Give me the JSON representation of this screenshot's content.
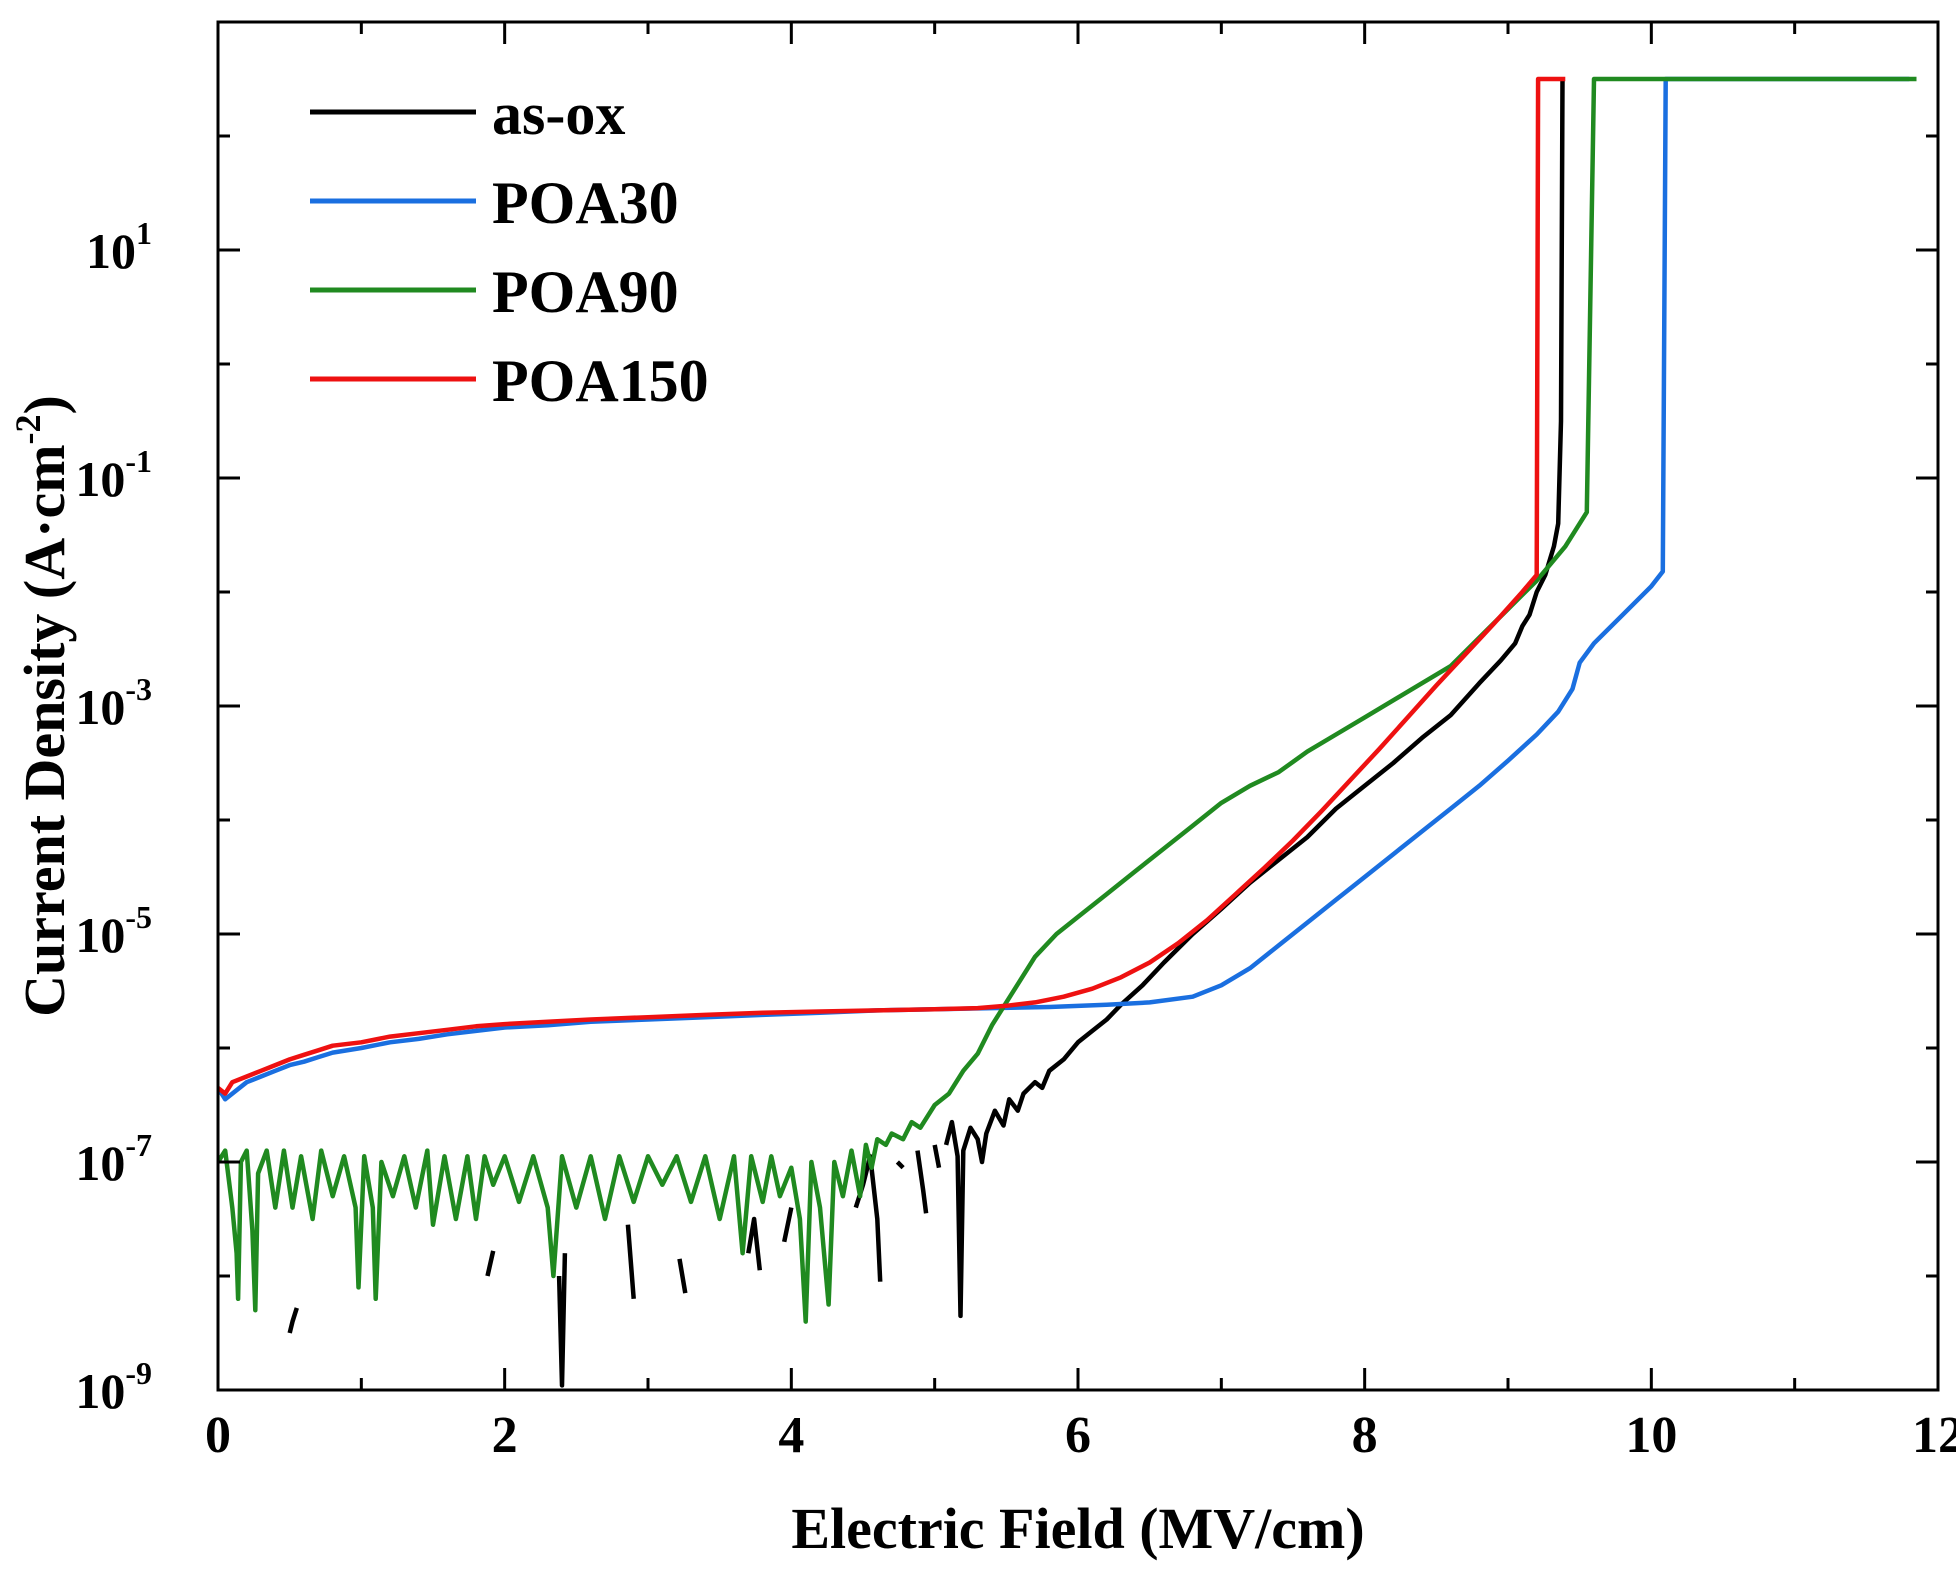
{
  "chart_data": {
    "type": "line",
    "xlabel": "Electric Field (MV/cm)",
    "ylabel_main": "Current Density (A·cm",
    "ylabel_sup": "-2",
    "ylabel_close": ")",
    "xlim": [
      0,
      12
    ],
    "ylim_log10": [
      -9,
      3
    ],
    "y_scale": "log",
    "grid": false,
    "legend_position": "top-left",
    "x_ticks": [
      {
        "value": 0,
        "label": "0"
      },
      {
        "value": 2,
        "label": "2"
      },
      {
        "value": 4,
        "label": "4"
      },
      {
        "value": 6,
        "label": "6"
      },
      {
        "value": 8,
        "label": "8"
      },
      {
        "value": 10,
        "label": "10"
      },
      {
        "value": 12,
        "label": "12"
      }
    ],
    "y_ticks": [
      {
        "exp": -9,
        "base": "10",
        "sup": "-9"
      },
      {
        "exp": -7,
        "base": "10",
        "sup": "-7"
      },
      {
        "exp": -5,
        "base": "10",
        "sup": "-5"
      },
      {
        "exp": -3,
        "base": "10",
        "sup": "-3"
      },
      {
        "exp": -1,
        "base": "10",
        "sup": "-1"
      },
      {
        "exp": 1,
        "base": "10",
        "sup": "1"
      }
    ],
    "series": [
      {
        "name": "as-ox",
        "color": "#000000",
        "points": [
          [
            0.55,
            -8.28
          ],
          [
            0.52,
            -8.4
          ],
          [
            0.5,
            -8.5
          ],
          null,
          [
            1.88,
            -8.0
          ],
          [
            1.92,
            -7.78
          ],
          null,
          [
            2.38,
            -8.0
          ],
          [
            2.4,
            -8.96
          ],
          [
            2.42,
            -7.8
          ],
          null,
          [
            2.86,
            -7.55
          ],
          [
            2.9,
            -8.2
          ],
          null,
          [
            3.22,
            -7.85
          ],
          [
            3.26,
            -8.15
          ],
          null,
          [
            3.7,
            -7.8
          ],
          [
            3.74,
            -7.5
          ],
          [
            3.78,
            -7.95
          ],
          null,
          [
            3.95,
            -7.7
          ],
          [
            4.0,
            -7.4
          ],
          null,
          [
            4.45,
            -7.4
          ],
          [
            4.5,
            -7.2
          ],
          [
            4.55,
            -6.95
          ],
          [
            4.6,
            -7.5
          ],
          [
            4.62,
            -8.05
          ],
          null,
          [
            4.74,
            -7.0
          ],
          [
            4.78,
            -7.05
          ],
          null,
          [
            4.88,
            -6.9
          ],
          [
            4.92,
            -7.25
          ],
          [
            4.94,
            -7.45
          ],
          null,
          [
            5.0,
            -6.85
          ],
          [
            5.03,
            -7.05
          ],
          null,
          [
            5.08,
            -6.85
          ],
          [
            5.12,
            -6.65
          ],
          [
            5.16,
            -6.95
          ],
          [
            5.18,
            -8.35
          ],
          [
            5.2,
            -6.9
          ],
          [
            5.25,
            -6.7
          ],
          [
            5.3,
            -6.8
          ],
          [
            5.33,
            -7.0
          ],
          [
            5.36,
            -6.75
          ],
          [
            5.42,
            -6.55
          ],
          [
            5.48,
            -6.68
          ],
          [
            5.52,
            -6.45
          ],
          [
            5.58,
            -6.55
          ],
          [
            5.62,
            -6.4
          ],
          [
            5.7,
            -6.3
          ],
          [
            5.75,
            -6.35
          ],
          [
            5.8,
            -6.2
          ],
          [
            5.9,
            -6.1
          ],
          [
            6.0,
            -5.95
          ],
          [
            6.1,
            -5.85
          ],
          [
            6.2,
            -5.75
          ],
          [
            6.3,
            -5.62
          ],
          [
            6.45,
            -5.45
          ],
          [
            6.6,
            -5.25
          ],
          [
            6.8,
            -5.0
          ],
          [
            7.0,
            -4.78
          ],
          [
            7.2,
            -4.55
          ],
          [
            7.4,
            -4.35
          ],
          [
            7.6,
            -4.15
          ],
          [
            7.8,
            -3.9
          ],
          [
            8.0,
            -3.7
          ],
          [
            8.2,
            -3.5
          ],
          [
            8.4,
            -3.28
          ],
          [
            8.6,
            -3.08
          ],
          [
            8.8,
            -2.8
          ],
          [
            8.95,
            -2.6
          ],
          [
            9.05,
            -2.45
          ],
          [
            9.1,
            -2.3
          ],
          [
            9.15,
            -2.2
          ],
          [
            9.2,
            -2.0
          ],
          [
            9.26,
            -1.85
          ],
          [
            9.32,
            -1.6
          ],
          [
            9.35,
            -1.4
          ],
          [
            9.37,
            -0.5
          ],
          [
            9.38,
            2.5
          ]
        ]
      },
      {
        "name": "POA30",
        "color": "#1a6fe0",
        "points": [
          [
            0.0,
            -6.35
          ],
          [
            0.05,
            -6.45
          ],
          [
            0.1,
            -6.4
          ],
          [
            0.2,
            -6.3
          ],
          [
            0.3,
            -6.25
          ],
          [
            0.4,
            -6.2
          ],
          [
            0.5,
            -6.15
          ],
          [
            0.6,
            -6.12
          ],
          [
            0.7,
            -6.08
          ],
          [
            0.8,
            -6.04
          ],
          [
            1.0,
            -6.0
          ],
          [
            1.2,
            -5.95
          ],
          [
            1.4,
            -5.92
          ],
          [
            1.6,
            -5.88
          ],
          [
            1.8,
            -5.85
          ],
          [
            2.0,
            -5.82
          ],
          [
            2.3,
            -5.8
          ],
          [
            2.6,
            -5.77
          ],
          [
            3.0,
            -5.75
          ],
          [
            3.4,
            -5.73
          ],
          [
            3.8,
            -5.71
          ],
          [
            4.2,
            -5.69
          ],
          [
            4.6,
            -5.67
          ],
          [
            5.0,
            -5.66
          ],
          [
            5.4,
            -5.65
          ],
          [
            5.8,
            -5.64
          ],
          [
            6.2,
            -5.62
          ],
          [
            6.5,
            -5.6
          ],
          [
            6.8,
            -5.55
          ],
          [
            7.0,
            -5.45
          ],
          [
            7.2,
            -5.3
          ],
          [
            7.4,
            -5.1
          ],
          [
            7.6,
            -4.9
          ],
          [
            7.8,
            -4.7
          ],
          [
            8.0,
            -4.5
          ],
          [
            8.2,
            -4.3
          ],
          [
            8.4,
            -4.1
          ],
          [
            8.6,
            -3.9
          ],
          [
            8.8,
            -3.7
          ],
          [
            9.0,
            -3.48
          ],
          [
            9.2,
            -3.25
          ],
          [
            9.35,
            -3.05
          ],
          [
            9.45,
            -2.85
          ],
          [
            9.5,
            -2.62
          ],
          [
            9.6,
            -2.45
          ],
          [
            9.8,
            -2.2
          ],
          [
            10.0,
            -1.95
          ],
          [
            10.08,
            -1.82
          ],
          [
            10.1,
            2.5
          ],
          [
            11.8,
            2.5
          ]
        ]
      },
      {
        "name": "POA90",
        "color": "#208a20",
        "points": [
          [
            0.0,
            -7.0
          ],
          [
            0.05,
            -6.9
          ],
          [
            0.1,
            -7.4
          ],
          [
            0.13,
            -7.8
          ],
          [
            0.14,
            -8.2
          ],
          [
            0.16,
            -7.0
          ],
          [
            0.2,
            -6.9
          ],
          [
            0.24,
            -7.6
          ],
          [
            0.26,
            -8.3
          ],
          [
            0.28,
            -7.1
          ],
          [
            0.34,
            -6.9
          ],
          [
            0.4,
            -7.4
          ],
          [
            0.46,
            -6.9
          ],
          [
            0.52,
            -7.4
          ],
          [
            0.58,
            -6.95
          ],
          [
            0.66,
            -7.5
          ],
          [
            0.72,
            -6.9
          ],
          [
            0.8,
            -7.3
          ],
          [
            0.88,
            -6.95
          ],
          [
            0.96,
            -7.4
          ],
          [
            0.98,
            -8.1
          ],
          [
            1.02,
            -6.95
          ],
          [
            1.08,
            -7.4
          ],
          [
            1.1,
            -8.2
          ],
          [
            1.14,
            -7.0
          ],
          [
            1.22,
            -7.3
          ],
          [
            1.3,
            -6.95
          ],
          [
            1.38,
            -7.4
          ],
          [
            1.46,
            -6.9
          ],
          [
            1.5,
            -7.55
          ],
          [
            1.58,
            -6.95
          ],
          [
            1.66,
            -7.5
          ],
          [
            1.74,
            -6.95
          ],
          [
            1.8,
            -7.5
          ],
          [
            1.86,
            -6.95
          ],
          [
            1.92,
            -7.2
          ],
          [
            2.0,
            -6.95
          ],
          [
            2.1,
            -7.35
          ],
          [
            2.2,
            -6.95
          ],
          [
            2.3,
            -7.4
          ],
          [
            2.34,
            -8.0
          ],
          [
            2.4,
            -6.95
          ],
          [
            2.5,
            -7.4
          ],
          [
            2.6,
            -6.95
          ],
          [
            2.7,
            -7.5
          ],
          [
            2.8,
            -6.95
          ],
          [
            2.9,
            -7.35
          ],
          [
            3.0,
            -6.95
          ],
          [
            3.1,
            -7.2
          ],
          [
            3.2,
            -6.95
          ],
          [
            3.3,
            -7.35
          ],
          [
            3.4,
            -6.95
          ],
          [
            3.5,
            -7.5
          ],
          [
            3.6,
            -6.95
          ],
          [
            3.66,
            -7.8
          ],
          [
            3.72,
            -6.95
          ],
          [
            3.8,
            -7.35
          ],
          [
            3.86,
            -6.95
          ],
          [
            3.92,
            -7.3
          ],
          [
            4.0,
            -7.05
          ],
          [
            4.06,
            -7.5
          ],
          [
            4.1,
            -8.4
          ],
          [
            4.14,
            -7.0
          ],
          [
            4.2,
            -7.4
          ],
          [
            4.26,
            -8.25
          ],
          [
            4.3,
            -7.0
          ],
          [
            4.36,
            -7.3
          ],
          [
            4.42,
            -6.9
          ],
          [
            4.48,
            -7.3
          ],
          [
            4.52,
            -6.85
          ],
          [
            4.56,
            -7.05
          ],
          [
            4.6,
            -6.8
          ],
          [
            4.66,
            -6.85
          ],
          [
            4.7,
            -6.75
          ],
          [
            4.78,
            -6.8
          ],
          [
            4.84,
            -6.65
          ],
          [
            4.9,
            -6.7
          ],
          [
            5.0,
            -6.5
          ],
          [
            5.1,
            -6.4
          ],
          [
            5.2,
            -6.2
          ],
          [
            5.3,
            -6.05
          ],
          [
            5.4,
            -5.8
          ],
          [
            5.5,
            -5.6
          ],
          [
            5.6,
            -5.4
          ],
          [
            5.7,
            -5.2
          ],
          [
            5.85,
            -5.0
          ],
          [
            6.0,
            -4.85
          ],
          [
            6.2,
            -4.65
          ],
          [
            6.4,
            -4.45
          ],
          [
            6.6,
            -4.25
          ],
          [
            6.8,
            -4.05
          ],
          [
            7.0,
            -3.85
          ],
          [
            7.2,
            -3.7
          ],
          [
            7.4,
            -3.58
          ],
          [
            7.6,
            -3.4
          ],
          [
            7.8,
            -3.25
          ],
          [
            8.0,
            -3.1
          ],
          [
            8.2,
            -2.95
          ],
          [
            8.4,
            -2.8
          ],
          [
            8.6,
            -2.65
          ],
          [
            8.8,
            -2.4
          ],
          [
            9.0,
            -2.15
          ],
          [
            9.2,
            -1.9
          ],
          [
            9.4,
            -1.6
          ],
          [
            9.55,
            -1.3
          ],
          [
            9.6,
            2.5
          ],
          [
            11.85,
            2.5
          ]
        ]
      },
      {
        "name": "POA150",
        "color": "#ee1111",
        "points": [
          [
            0.0,
            -6.35
          ],
          [
            0.05,
            -6.4
          ],
          [
            0.1,
            -6.3
          ],
          [
            0.2,
            -6.25
          ],
          [
            0.3,
            -6.2
          ],
          [
            0.4,
            -6.15
          ],
          [
            0.5,
            -6.1
          ],
          [
            0.6,
            -6.06
          ],
          [
            0.7,
            -6.02
          ],
          [
            0.8,
            -5.98
          ],
          [
            1.0,
            -5.95
          ],
          [
            1.2,
            -5.9
          ],
          [
            1.4,
            -5.87
          ],
          [
            1.6,
            -5.84
          ],
          [
            1.8,
            -5.81
          ],
          [
            2.0,
            -5.79
          ],
          [
            2.3,
            -5.77
          ],
          [
            2.6,
            -5.75
          ],
          [
            3.0,
            -5.73
          ],
          [
            3.4,
            -5.71
          ],
          [
            3.8,
            -5.69
          ],
          [
            4.2,
            -5.68
          ],
          [
            4.6,
            -5.67
          ],
          [
            5.0,
            -5.66
          ],
          [
            5.3,
            -5.65
          ],
          [
            5.5,
            -5.63
          ],
          [
            5.7,
            -5.6
          ],
          [
            5.9,
            -5.55
          ],
          [
            6.1,
            -5.48
          ],
          [
            6.3,
            -5.38
          ],
          [
            6.5,
            -5.25
          ],
          [
            6.7,
            -5.08
          ],
          [
            6.9,
            -4.88
          ],
          [
            7.1,
            -4.65
          ],
          [
            7.3,
            -4.42
          ],
          [
            7.5,
            -4.18
          ],
          [
            7.7,
            -3.92
          ],
          [
            7.9,
            -3.65
          ],
          [
            8.1,
            -3.38
          ],
          [
            8.3,
            -3.1
          ],
          [
            8.5,
            -2.82
          ],
          [
            8.7,
            -2.55
          ],
          [
            8.9,
            -2.28
          ],
          [
            9.1,
            -2.0
          ],
          [
            9.2,
            -1.85
          ],
          [
            9.21,
            2.5
          ],
          [
            9.4,
            2.5
          ]
        ]
      }
    ]
  }
}
